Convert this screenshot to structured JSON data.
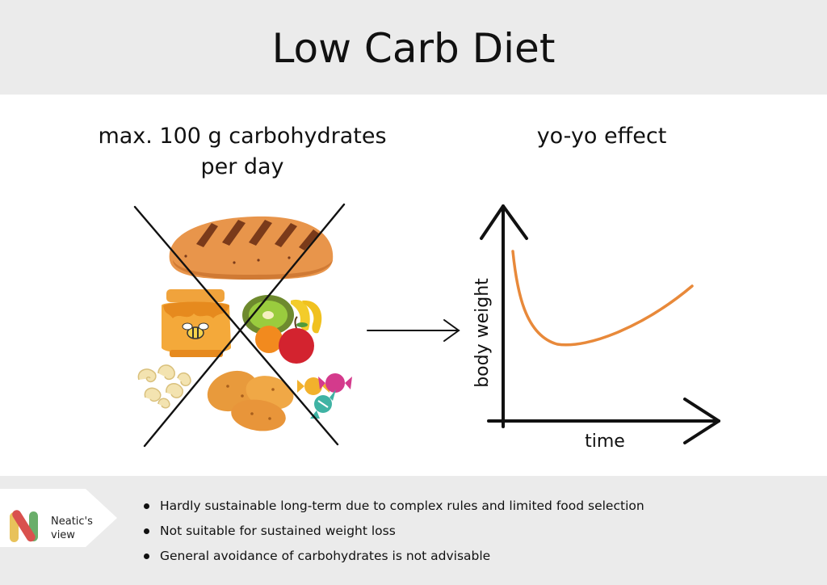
{
  "title": "Low Carb Diet",
  "left_panel": {
    "heading_line1": "max. 100 g carbohydrates",
    "heading_line2": "per day",
    "foods": [
      "bread-icon",
      "honey-jar-icon",
      "fruit-icon",
      "pasta-icon",
      "potato-icon",
      "candy-icon"
    ],
    "crossed_out": true
  },
  "right_panel": {
    "heading": "yo-yo effect",
    "y_axis_label": "body weight",
    "x_axis_label": "time",
    "curve_color": "#e8893a"
  },
  "footer": {
    "logo_line1": "Neatic's",
    "logo_line2": "view",
    "bullets": [
      "Hardly sustainable long-term due to complex rules and limited food selection",
      "Not suitable for sustained weight loss",
      "General avoidance of carbohydrates is not advisable"
    ]
  },
  "colors": {
    "band": "#ebebeb",
    "curve": "#e8893a",
    "logo_yellow": "#e8c25a",
    "logo_red": "#d9514e",
    "logo_green": "#6aae6a"
  }
}
